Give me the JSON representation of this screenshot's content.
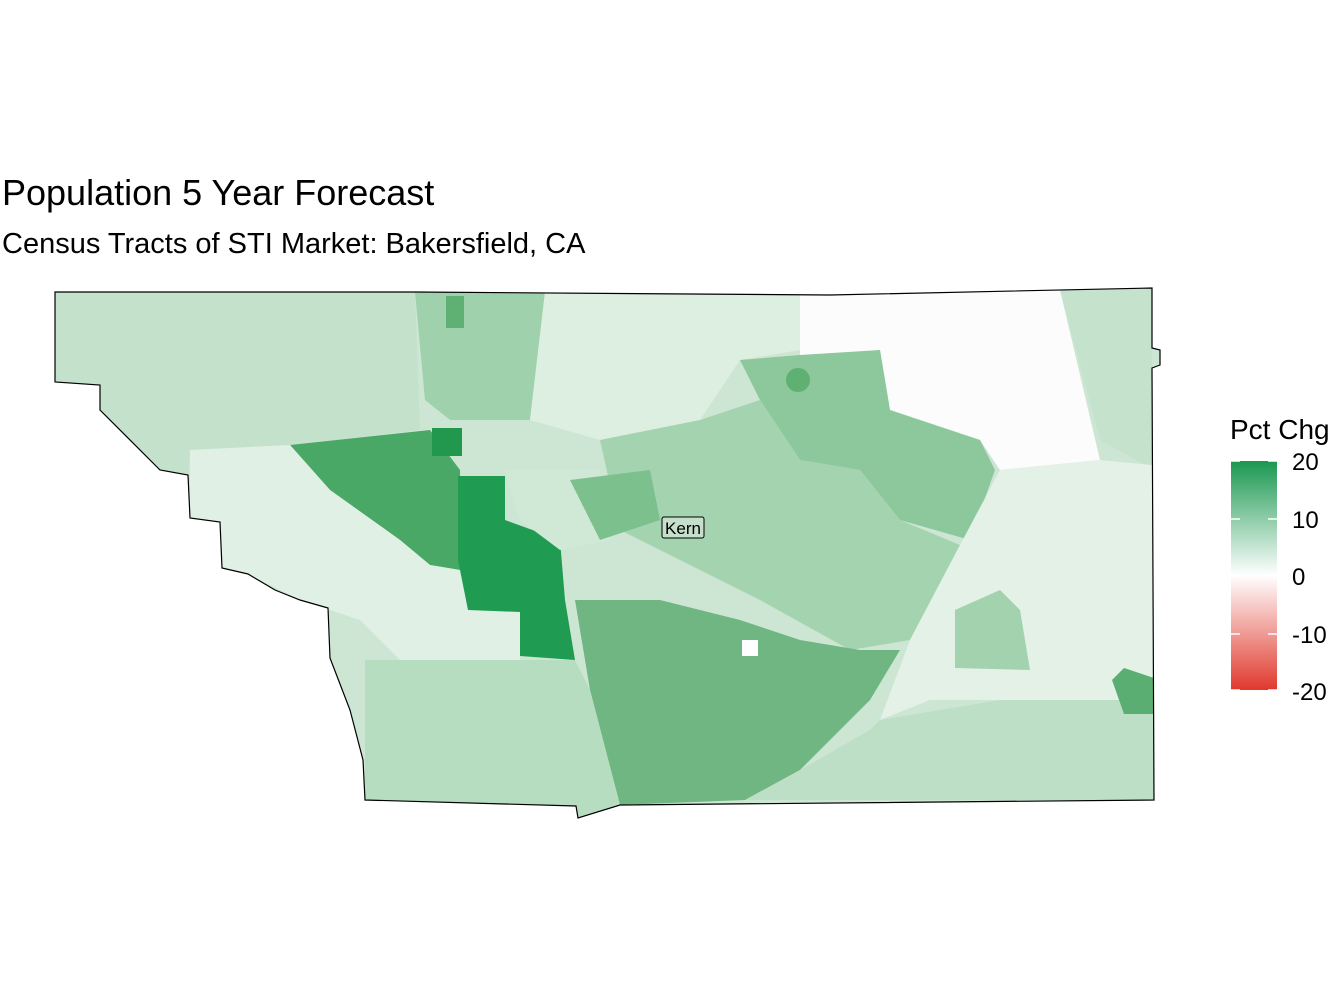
{
  "title": "Population 5 Year Forecast",
  "subtitle": "Census Tracts of STI Market: Bakersfield, CA",
  "map_label": "Kern",
  "legend": {
    "title": "Pct Chg",
    "ticks": [
      "20",
      "10",
      "0",
      "-10",
      "-20"
    ],
    "range": [
      -20,
      20
    ],
    "colors": {
      "low": "#e0382d",
      "mid": "#ffffff",
      "high": "#1a9850"
    }
  }
}
